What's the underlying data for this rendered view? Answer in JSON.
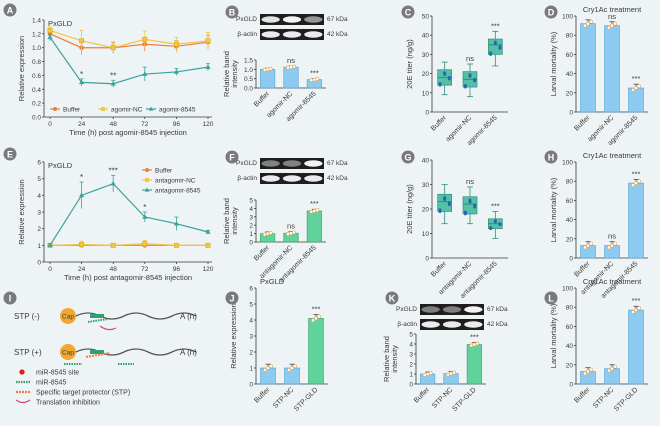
{
  "colors": {
    "bg": "#eef3f5",
    "orange": "#f07c3c",
    "yellow": "#f4c542",
    "teal": "#3aa39a",
    "blue": "#8ccbef",
    "blue_edge": "#4d9fd6",
    "green": "#5fd39a",
    "green_edge": "#2fa06e",
    "dark": "#3a3a3a",
    "badge": "#7a7a7a",
    "box": "#55c0a8",
    "box_edge": "#2c8f7a"
  },
  "chart_data": [
    {
      "id": "A",
      "type": "line",
      "title": "PxGLD",
      "xlabel": "Time (h) post agomir-8545 injection",
      "ylabel": "Relative expression",
      "x": [
        0,
        24,
        48,
        72,
        96,
        120
      ],
      "xticks": [
        "0",
        "24",
        "48",
        "72",
        "96",
        "120"
      ],
      "ylim": [
        0,
        1.4
      ],
      "yticks": [
        "0.0",
        "0.2",
        "0.4",
        "0.6",
        "0.8",
        "1.0",
        "1.2",
        "1.4"
      ],
      "series": [
        {
          "name": "Buffer",
          "values": [
            1.2,
            1.0,
            1.0,
            1.05,
            1.02,
            1.08
          ],
          "err": [
            0.05,
            0.1,
            0.08,
            0.1,
            0.08,
            0.1
          ]
        },
        {
          "name": "agomir-NC",
          "values": [
            1.25,
            1.1,
            1.0,
            1.12,
            1.05,
            1.1
          ],
          "err": [
            0.05,
            0.15,
            0.05,
            0.12,
            0.1,
            0.12
          ]
        },
        {
          "name": "agomir-8545",
          "values": [
            1.15,
            0.5,
            0.48,
            0.62,
            0.65,
            0.72
          ],
          "err": [
            0.05,
            0.05,
            0.05,
            0.1,
            0.05,
            0.05
          ]
        }
      ],
      "sig": [
        {
          "x": 24,
          "text": "*"
        },
        {
          "x": 48,
          "text": "**"
        }
      ]
    },
    {
      "id": "B",
      "type": "bar",
      "categories": [
        "Buffer",
        "agomir-NC",
        "agomir-8545"
      ],
      "values": [
        1.0,
        1.12,
        0.45
      ],
      "ylim": [
        0,
        1.5
      ],
      "yticks": [
        "0.0",
        "0.5",
        "1.0",
        "1.5"
      ],
      "ylabel": "Relative band\nintensity",
      "sig": [
        "",
        "ns",
        "***"
      ],
      "blots": [
        {
          "label": "PxGLD",
          "kda": "67 kDa"
        },
        {
          "label": "β-actin",
          "kda": "42 kDa"
        }
      ]
    },
    {
      "id": "C",
      "type": "box",
      "categories": [
        "Buffer",
        "agomir-NC",
        "agomir-8545"
      ],
      "ylim": [
        0,
        50
      ],
      "yticks": [
        "0",
        "10",
        "20",
        "30",
        "40",
        "50"
      ],
      "ylabel": "20E titer (ng/g)",
      "boxes": [
        {
          "min": 9,
          "q1": 14,
          "med": 18,
          "q3": 22,
          "max": 26
        },
        {
          "min": 8,
          "q1": 13,
          "med": 17,
          "q3": 21,
          "max": 25
        },
        {
          "min": 24,
          "q1": 30,
          "med": 35,
          "q3": 38,
          "max": 42
        }
      ],
      "sig": [
        "",
        "ns",
        "***"
      ]
    },
    {
      "id": "D",
      "type": "bar",
      "title": "Cry1Ac treatment",
      "categories": [
        "Buffer",
        "agomir-NC",
        "agomir-8545"
      ],
      "values": [
        92,
        90,
        25
      ],
      "ylim": [
        0,
        100
      ],
      "yticks": [
        "0",
        "20",
        "40",
        "60",
        "80",
        "100"
      ],
      "ylabel": "Larval mortality (%)",
      "sig": [
        "",
        "ns",
        "***"
      ]
    },
    {
      "id": "E",
      "type": "line",
      "title": "PxGLD",
      "xlabel": "Time (h) post antagomir-8545 injection",
      "ylabel": "Relative expression",
      "x": [
        0,
        24,
        48,
        72,
        96,
        120
      ],
      "xticks": [
        "0",
        "24",
        "48",
        "72",
        "96",
        "120"
      ],
      "ylim": [
        0,
        6
      ],
      "yticks": [
        "0",
        "1",
        "2",
        "3",
        "4",
        "5",
        "6"
      ],
      "series": [
        {
          "name": "Buffer",
          "values": [
            1.0,
            1.0,
            1.0,
            1.0,
            1.0,
            1.0
          ],
          "err": [
            0.1,
            0.1,
            0.1,
            0.1,
            0.1,
            0.1
          ]
        },
        {
          "name": "antagomir-NC",
          "values": [
            1.0,
            1.05,
            1.0,
            1.1,
            1.0,
            1.0
          ],
          "err": [
            0.1,
            0.2,
            0.1,
            0.2,
            0.1,
            0.1
          ]
        },
        {
          "name": "antagomir-8545",
          "values": [
            1.0,
            4.0,
            4.7,
            2.7,
            2.3,
            1.8
          ],
          "err": [
            0.1,
            0.8,
            0.5,
            0.3,
            0.4,
            0.1
          ]
        }
      ],
      "sig": [
        {
          "x": 24,
          "text": "*"
        },
        {
          "x": 48,
          "text": "***"
        },
        {
          "x": 72,
          "text": "*"
        }
      ]
    },
    {
      "id": "F",
      "type": "bar",
      "categories": [
        "Buffer",
        "antagomir-NC",
        "antagomir-8545"
      ],
      "values": [
        1.0,
        1.05,
        3.7
      ],
      "ylim": [
        0,
        5
      ],
      "yticks": [
        "0",
        "1",
        "2",
        "3",
        "4",
        "5"
      ],
      "ylabel": "Relative band\nintensity",
      "sig": [
        "",
        "ns",
        "***"
      ],
      "blots": [
        {
          "label": "PxGLD",
          "kda": "67 kDa"
        },
        {
          "label": "β-actin",
          "kda": "42 kDa"
        }
      ]
    },
    {
      "id": "G",
      "type": "box",
      "categories": [
        "Buffer",
        "antagomir-NC",
        "antagomir-8545"
      ],
      "ylim": [
        0,
        40
      ],
      "yticks": [
        "0",
        "10",
        "20",
        "30",
        "40"
      ],
      "ylabel": "20E titer (ng/g)",
      "boxes": [
        {
          "min": 14,
          "q1": 19,
          "med": 23,
          "q3": 26,
          "max": 30
        },
        {
          "min": 14,
          "q1": 18,
          "med": 22,
          "q3": 25,
          "max": 29
        },
        {
          "min": 8,
          "q1": 12,
          "med": 14,
          "q3": 16,
          "max": 19
        }
      ],
      "sig": [
        "",
        "ns",
        "***"
      ]
    },
    {
      "id": "H",
      "type": "bar",
      "title": "Cry1Ac treatment",
      "categories": [
        "Buffer",
        "antagomir-NC",
        "antagomir-8545"
      ],
      "values": [
        13,
        13,
        78
      ],
      "ylim": [
        0,
        100
      ],
      "yticks": [
        "0",
        "20",
        "40",
        "60",
        "80",
        "100"
      ],
      "ylabel": "Larval mortality (%)",
      "sig": [
        "",
        "ns",
        "***"
      ]
    },
    {
      "id": "J",
      "type": "bar",
      "title": "PxGLD",
      "categories": [
        "Buffer",
        "STP-NC",
        "STP-GLD"
      ],
      "values": [
        1.0,
        1.0,
        4.1
      ],
      "ylim": [
        0,
        6
      ],
      "yticks": [
        "0",
        "1",
        "2",
        "3",
        "4",
        "5",
        "6"
      ],
      "ylabel": "Relative expression",
      "sig": [
        "",
        "",
        "***"
      ]
    },
    {
      "id": "K",
      "type": "bar",
      "categories": [
        "Buffer",
        "STP-NC",
        "STP-GLD"
      ],
      "values": [
        1.0,
        1.05,
        3.95
      ],
      "ylim": [
        0,
        5
      ],
      "yticks": [
        "0",
        "1",
        "2",
        "3",
        "4",
        "5"
      ],
      "ylabel": "Relative band\nintensity",
      "sig": [
        "",
        "",
        "***"
      ],
      "blots": [
        {
          "label": "PxGLD",
          "kda": "67 kDa"
        },
        {
          "label": "β-actin",
          "kda": "42 kDa"
        }
      ]
    },
    {
      "id": "L",
      "type": "bar",
      "title": "Cry1Ac treatment",
      "categories": [
        "Buffer",
        "STP-NC",
        "STP-GLD"
      ],
      "values": [
        13,
        16,
        77
      ],
      "ylim": [
        0,
        100
      ],
      "yticks": [
        "0",
        "20",
        "40",
        "60",
        "80",
        "100"
      ],
      "ylabel": "Larval mortality (%)",
      "sig": [
        "",
        "",
        "***"
      ]
    }
  ],
  "diagram_I": {
    "rows": [
      {
        "label": "STP (-)",
        "cap": "Cap",
        "tail": "A (n)"
      },
      {
        "label": "STP (+)",
        "cap": "Cap",
        "tail": "A (n)"
      }
    ],
    "legend": [
      "miR-8545 site",
      "miR-8545",
      "Specific target protector (STP)",
      "Translation inhibition"
    ]
  }
}
